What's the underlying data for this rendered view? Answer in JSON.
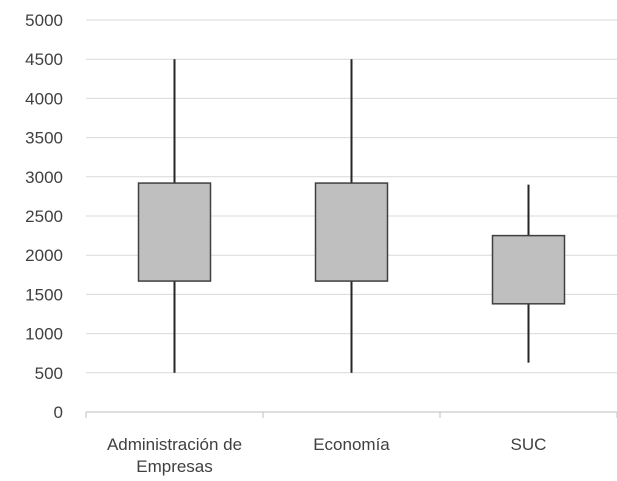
{
  "chart_data": {
    "type": "boxplot",
    "categories": [
      "Administración de Empresas",
      "Economía",
      "SUC"
    ],
    "category_label_lines": [
      [
        "Administración de",
        "Empresas"
      ],
      [
        "Economía"
      ],
      [
        "SUC"
      ]
    ],
    "boxes": [
      {
        "category": "Administración de Empresas",
        "min": 500,
        "q1": 1670,
        "q3": 2920,
        "max": 4500
      },
      {
        "category": "Economía",
        "min": 500,
        "q1": 1670,
        "q3": 2920,
        "max": 4500
      },
      {
        "category": "SUC",
        "min": 630,
        "q1": 1380,
        "q3": 2250,
        "max": 2900
      }
    ],
    "ylim": [
      0,
      5000
    ],
    "yticks": [
      0,
      500,
      1000,
      1500,
      2000,
      2500,
      3000,
      3500,
      4000,
      4500,
      5000
    ],
    "grid": true,
    "legend": "none",
    "colors": {
      "box_fill": "#bfbfbf",
      "box_stroke": "#404040",
      "whisker": "#262626",
      "grid": "#d9d9d9",
      "axis": "#bfbfbf",
      "text": "#404040"
    }
  }
}
